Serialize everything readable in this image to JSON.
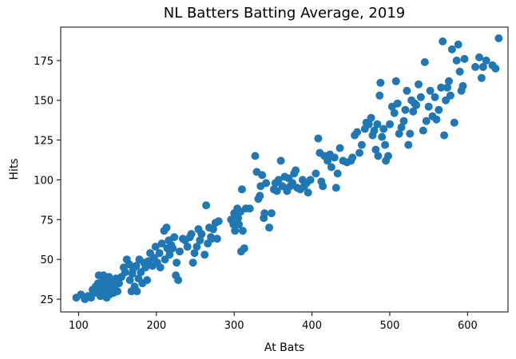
{
  "chart_data": {
    "type": "scatter",
    "title": "NL Batters Batting Average, 2019",
    "xlabel": "At Bats",
    "ylabel": "Hits",
    "xlim": [
      77,
      652
    ],
    "ylim": [
      17,
      196
    ],
    "xticks": [
      100,
      200,
      300,
      400,
      500,
      600
    ],
    "yticks": [
      25,
      50,
      75,
      100,
      125,
      150,
      175
    ],
    "grid": false,
    "legend": "none",
    "marker_color": "#1f77b4",
    "points": [
      [
        97,
        26
      ],
      [
        103,
        28
      ],
      [
        108,
        25
      ],
      [
        112,
        27
      ],
      [
        116,
        26
      ],
      [
        118,
        31
      ],
      [
        120,
        29
      ],
      [
        122,
        33
      ],
      [
        124,
        29
      ],
      [
        125,
        35
      ],
      [
        126,
        40
      ],
      [
        128,
        27
      ],
      [
        129,
        31
      ],
      [
        131,
        36
      ],
      [
        132,
        40
      ],
      [
        133,
        28
      ],
      [
        134,
        33
      ],
      [
        135,
        38
      ],
      [
        136,
        26
      ],
      [
        137,
        30
      ],
      [
        138,
        34
      ],
      [
        139,
        39
      ],
      [
        140,
        28
      ],
      [
        141,
        35
      ],
      [
        142,
        31
      ],
      [
        143,
        37
      ],
      [
        145,
        29
      ],
      [
        146,
        33
      ],
      [
        148,
        38
      ],
      [
        150,
        30
      ],
      [
        152,
        35
      ],
      [
        155,
        39
      ],
      [
        158,
        45
      ],
      [
        160,
        42
      ],
      [
        162,
        50
      ],
      [
        165,
        47
      ],
      [
        166,
        37
      ],
      [
        168,
        30
      ],
      [
        169,
        41
      ],
      [
        170,
        44
      ],
      [
        172,
        33
      ],
      [
        174,
        46
      ],
      [
        175,
        30
      ],
      [
        177,
        38
      ],
      [
        178,
        50
      ],
      [
        180,
        42
      ],
      [
        182,
        35
      ],
      [
        184,
        48
      ],
      [
        186,
        45
      ],
      [
        188,
        37
      ],
      [
        190,
        49
      ],
      [
        192,
        54
      ],
      [
        195,
        46
      ],
      [
        197,
        51
      ],
      [
        199,
        58
      ],
      [
        201,
        48
      ],
      [
        204,
        54
      ],
      [
        205,
        45
      ],
      [
        207,
        60
      ],
      [
        210,
        68
      ],
      [
        211,
        50
      ],
      [
        213,
        70
      ],
      [
        214,
        57
      ],
      [
        216,
        62
      ],
      [
        217,
        53
      ],
      [
        219,
        59
      ],
      [
        221,
        57
      ],
      [
        223,
        64
      ],
      [
        225,
        40
      ],
      [
        226,
        48
      ],
      [
        228,
        37
      ],
      [
        230,
        55
      ],
      [
        234,
        63
      ],
      [
        237,
        62
      ],
      [
        240,
        58
      ],
      [
        243,
        64
      ],
      [
        245,
        66
      ],
      [
        247,
        48
      ],
      [
        249,
        54
      ],
      [
        252,
        58
      ],
      [
        254,
        69
      ],
      [
        256,
        62
      ],
      [
        258,
        66
      ],
      [
        262,
        53
      ],
      [
        264,
        84
      ],
      [
        266,
        60
      ],
      [
        268,
        70
      ],
      [
        270,
        64
      ],
      [
        271,
        63
      ],
      [
        273,
        69
      ],
      [
        276,
        73
      ],
      [
        278,
        63
      ],
      [
        280,
        74
      ],
      [
        296,
        75
      ],
      [
        299,
        72
      ],
      [
        300,
        79
      ],
      [
        301,
        68
      ],
      [
        303,
        78
      ],
      [
        304,
        82
      ],
      [
        305,
        76
      ],
      [
        306,
        72
      ],
      [
        308,
        80
      ],
      [
        309,
        55
      ],
      [
        310,
        94
      ],
      [
        311,
        68
      ],
      [
        313,
        57
      ],
      [
        315,
        82
      ],
      [
        320,
        82
      ],
      [
        327,
        115
      ],
      [
        329,
        105
      ],
      [
        331,
        88
      ],
      [
        333,
        90
      ],
      [
        334,
        96
      ],
      [
        336,
        103
      ],
      [
        338,
        76
      ],
      [
        339,
        79
      ],
      [
        341,
        98
      ],
      [
        345,
        70
      ],
      [
        348,
        79
      ],
      [
        351,
        94
      ],
      [
        353,
        98
      ],
      [
        355,
        93
      ],
      [
        357,
        100
      ],
      [
        360,
        112
      ],
      [
        362,
        96
      ],
      [
        365,
        102
      ],
      [
        368,
        93
      ],
      [
        370,
        101
      ],
      [
        372,
        96
      ],
      [
        375,
        98
      ],
      [
        377,
        104
      ],
      [
        379,
        106
      ],
      [
        381,
        95
      ],
      [
        385,
        94
      ],
      [
        388,
        100
      ],
      [
        390,
        96
      ],
      [
        393,
        98
      ],
      [
        395,
        92
      ],
      [
        398,
        100
      ],
      [
        405,
        104
      ],
      [
        408,
        126
      ],
      [
        410,
        117
      ],
      [
        412,
        99
      ],
      [
        414,
        96
      ],
      [
        416,
        115
      ],
      [
        420,
        112
      ],
      [
        423,
        116
      ],
      [
        425,
        108
      ],
      [
        429,
        114
      ],
      [
        431,
        95
      ],
      [
        433,
        104
      ],
      [
        436,
        120
      ],
      [
        440,
        112
      ],
      [
        445,
        111
      ],
      [
        450,
        112
      ],
      [
        452,
        114
      ],
      [
        455,
        128
      ],
      [
        458,
        130
      ],
      [
        461,
        117
      ],
      [
        464,
        122
      ],
      [
        468,
        132
      ],
      [
        470,
        136
      ],
      [
        473,
        135
      ],
      [
        476,
        139
      ],
      [
        478,
        128
      ],
      [
        480,
        131
      ],
      [
        482,
        119
      ],
      [
        484,
        135
      ],
      [
        485,
        115
      ],
      [
        487,
        153
      ],
      [
        488,
        161
      ],
      [
        490,
        127
      ],
      [
        492,
        132
      ],
      [
        494,
        122
      ],
      [
        495,
        112
      ],
      [
        498,
        115
      ],
      [
        500,
        135
      ],
      [
        503,
        146
      ],
      [
        506,
        142
      ],
      [
        508,
        162
      ],
      [
        510,
        148
      ],
      [
        512,
        129
      ],
      [
        515,
        133
      ],
      [
        518,
        137
      ],
      [
        520,
        144
      ],
      [
        522,
        156
      ],
      [
        524,
        122
      ],
      [
        526,
        129
      ],
      [
        528,
        150
      ],
      [
        530,
        143
      ],
      [
        532,
        148
      ],
      [
        534,
        147
      ],
      [
        537,
        160
      ],
      [
        540,
        152
      ],
      [
        543,
        131
      ],
      [
        545,
        174
      ],
      [
        547,
        137
      ],
      [
        550,
        146
      ],
      [
        552,
        156
      ],
      [
        555,
        140
      ],
      [
        558,
        152
      ],
      [
        560,
        138
      ],
      [
        563,
        144
      ],
      [
        566,
        158
      ],
      [
        568,
        187
      ],
      [
        570,
        128
      ],
      [
        572,
        150
      ],
      [
        574,
        158
      ],
      [
        576,
        162
      ],
      [
        578,
        153
      ],
      [
        580,
        182
      ],
      [
        583,
        136
      ],
      [
        586,
        175
      ],
      [
        588,
        185
      ],
      [
        590,
        168
      ],
      [
        592,
        156
      ],
      [
        594,
        159
      ],
      [
        596,
        176
      ],
      [
        610,
        171
      ],
      [
        615,
        177
      ],
      [
        618,
        164
      ],
      [
        620,
        171
      ],
      [
        624,
        175
      ],
      [
        632,
        172
      ],
      [
        636,
        170
      ],
      [
        640,
        189
      ]
    ]
  }
}
